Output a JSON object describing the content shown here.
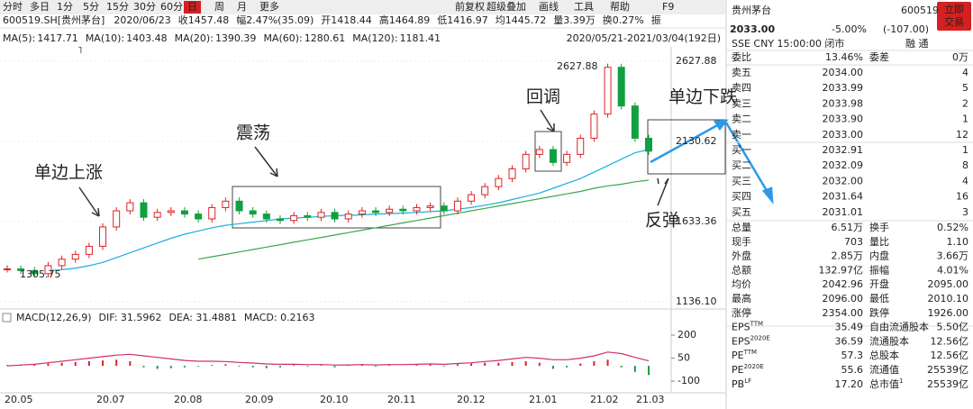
{
  "toolbar": {
    "tabs": [
      "分时",
      "多日",
      "1分",
      "5分",
      "15分",
      "30分",
      "60分",
      "日",
      "周",
      "月",
      "更多"
    ],
    "active_tab_index": 7,
    "tools": [
      "前复权",
      "超级叠加",
      "画线",
      "工具",
      "帮助",
      "F9"
    ]
  },
  "info_row": {
    "symbol": "600519.SH[贵州茅台]",
    "date": "2020/06/23",
    "items": [
      {
        "label": "收",
        "value": "1457.48",
        "color": "#d01010"
      },
      {
        "label": "幅",
        "value": "2.47%(35.09)",
        "color": "#d01010"
      },
      {
        "label": "开",
        "value": "1418.44",
        "color": "#d01010"
      },
      {
        "label": "高",
        "value": "1464.89",
        "color": "#d01010"
      },
      {
        "label": "低",
        "value": "1416.97",
        "color": "#d01010"
      },
      {
        "label": "均",
        "value": "1445.72",
        "color": "#d01010"
      },
      {
        "label": "量",
        "value": "3.39万",
        "color": "#222"
      },
      {
        "label": "换",
        "value": "0.27%",
        "color": "#222"
      },
      {
        "label": "振"
      }
    ]
  },
  "ma_legend": [
    {
      "label": "MA(5):",
      "value": "1417.71",
      "color": "#e0307a"
    },
    {
      "label": "MA(10):",
      "value": "1403.48",
      "color": "#2a62d0"
    },
    {
      "label": "MA(20):",
      "value": "1390.39",
      "color": "#1a2f80"
    },
    {
      "label": "MA(60):",
      "value": "1280.61",
      "color": "#18b0dc"
    },
    {
      "label": "MA(120):",
      "value": "1181.41",
      "color": "#3aa84a"
    }
  ],
  "range_text": "2020/05/21-2021/03/04(192日)",
  "price_chart": {
    "ylim": [
      1108,
      2700
    ],
    "yticks": [
      2627.88,
      2130.62,
      1633.36,
      {
        "value": 1136.1,
        "label": "1136.10"
      }
    ],
    "up_color": "#e02020",
    "down_color": "#10a040",
    "close": [
      1340,
      1330,
      1310,
      1360,
      1400,
      1430,
      1480,
      1600,
      1700,
      1750,
      1660,
      1690,
      1700,
      1680,
      1650,
      1720,
      1760,
      1700,
      1680,
      1650,
      1640,
      1670,
      1660,
      1690,
      1650,
      1680,
      1700,
      1690,
      1710,
      1700,
      1720,
      1730,
      1700,
      1760,
      1800,
      1850,
      1900,
      1960,
      2050,
      2080,
      2000,
      2050,
      2150,
      2300,
      2590,
      2350,
      2150,
      2070
    ],
    "ma_series": [
      {
        "legend": 3,
        "values": [
          null,
          null,
          null,
          1330,
          1335,
          1345,
          1360,
          1380,
          1410,
          1440,
          1470,
          1500,
          1530,
          1555,
          1575,
          1595,
          1610,
          1620,
          1630,
          1640,
          1650,
          1655,
          1660,
          1665,
          1670,
          1672,
          1675,
          1680,
          1683,
          1686,
          1690,
          1695,
          1700,
          1710,
          1720,
          1735,
          1750,
          1770,
          1790,
          1810,
          1840,
          1870,
          1900,
          1940,
          1980,
          2020,
          2060,
          2080
        ]
      },
      {
        "legend": 4,
        "values": [
          null,
          null,
          null,
          null,
          null,
          null,
          null,
          null,
          null,
          null,
          null,
          null,
          null,
          null,
          1400,
          1415,
          1430,
          1445,
          1460,
          1475,
          1490,
          1505,
          1520,
          1535,
          1550,
          1565,
          1580,
          1595,
          1610,
          1625,
          1640,
          1655,
          1670,
          1685,
          1700,
          1715,
          1730,
          1745,
          1760,
          1775,
          1790,
          1805,
          1820,
          1840,
          1855,
          1865,
          1880,
          1890
        ]
      }
    ],
    "extremes": [
      "2627.88",
      "1305.75"
    ],
    "annotations": [
      "单边上涨",
      "震荡",
      "回调",
      "单边下跌",
      "反弹"
    ]
  },
  "macd": {
    "label": "MACD(12,26,9)",
    "items": [
      {
        "text": "DIF: 31.5962",
        "color": "#d0306a"
      },
      {
        "text": "DEA: 31.4881",
        "color": "#2a62d0"
      },
      {
        "text": "MACD: 0.2163",
        "color": "#20a040"
      }
    ],
    "ylim": [
      -170,
      259
    ],
    "yticks": [
      200,
      50,
      -100
    ],
    "hist": [
      5,
      8,
      10,
      15,
      20,
      25,
      30,
      35,
      40,
      30,
      -10,
      -20,
      -15,
      -10,
      -5,
      5,
      10,
      -5,
      -10,
      -15,
      -10,
      5,
      -5,
      5,
      -10,
      5,
      8,
      -5,
      5,
      0,
      5,
      8,
      -5,
      10,
      15,
      20,
      20,
      25,
      30,
      20,
      -20,
      -10,
      15,
      30,
      40,
      -10,
      -40,
      -60
    ],
    "dif": [
      0,
      5,
      10,
      20,
      30,
      40,
      50,
      60,
      70,
      75,
      65,
      55,
      45,
      35,
      30,
      30,
      28,
      22,
      18,
      12,
      10,
      10,
      8,
      8,
      5,
      6,
      8,
      6,
      8,
      8,
      10,
      12,
      10,
      15,
      20,
      28,
      35,
      45,
      55,
      50,
      40,
      40,
      50,
      65,
      90,
      80,
      55,
      32
    ],
    "dif_color": "#d0306a"
  },
  "x_labels": [
    "20.05",
    "20.07",
    "20.08",
    "20.09",
    "20.10",
    "20.11",
    "20.12",
    "21.01",
    "21.02",
    "21.03"
  ],
  "quote": {
    "name": "贵州茅台",
    "code": "600519",
    "button": [
      "立即",
      "交易"
    ],
    "price": "2033.00",
    "change_pct": "-5.00%",
    "change": "(-107.00)",
    "status": "SSE  CNY  15:00:00  闭市",
    "flags": "融  通",
    "ratio_row": {
      "label": "委比",
      "value": "13.46%",
      "label2": "委差",
      "value2": "0万"
    },
    "book": [
      [
        "卖五",
        "2034.00",
        "4"
      ],
      [
        "卖四",
        "2033.99",
        "5"
      ],
      [
        "卖三",
        "2033.98",
        "2"
      ],
      [
        "卖二",
        "2033.90",
        "1"
      ],
      [
        "卖一",
        "2033.00",
        "12"
      ],
      [
        "买一",
        "2032.91",
        "1"
      ],
      [
        "买二",
        "2032.09",
        "8"
      ],
      [
        "买三",
        "2032.00",
        "4"
      ],
      [
        "买四",
        "2031.64",
        "16"
      ],
      [
        "买五",
        "2031.01",
        "3"
      ]
    ],
    "stats": [
      [
        {
          "t": "总量"
        },
        {
          "t": "6.51万",
          "c": "#222"
        },
        {
          "t": "换手"
        },
        {
          "t": "0.52%",
          "c": "#222"
        }
      ],
      [
        {
          "t": "现手"
        },
        {
          "t": "703",
          "c": "#222"
        },
        {
          "t": "量比"
        },
        {
          "t": "1.10",
          "c": "#222"
        }
      ],
      [
        {
          "t": "外盘"
        },
        {
          "t": "2.85万",
          "c": "#d01010"
        },
        {
          "t": "内盘"
        },
        {
          "t": "3.66万",
          "c": "#109030"
        }
      ],
      [
        {
          "t": "总额"
        },
        {
          "t": "132.97亿",
          "c": "#222"
        },
        {
          "t": "振幅"
        },
        {
          "t": "4.01%",
          "c": "#222"
        }
      ],
      [
        {
          "t": "均价"
        },
        {
          "t": "2042.96",
          "c": "#109030"
        },
        {
          "t": "开盘"
        },
        {
          "t": "2095.00",
          "c": "#109030"
        }
      ],
      [
        {
          "t": "最高"
        },
        {
          "t": "2096.00",
          "c": "#109030"
        },
        {
          "t": "最低"
        },
        {
          "t": "2010.10",
          "c": "#109030"
        }
      ],
      [
        {
          "t": "涨停"
        },
        {
          "t": "2354.00",
          "c": "#d01010"
        },
        {
          "t": "跌停"
        },
        {
          "t": "1926.00",
          "c": "#109030"
        }
      ],
      [
        {
          "t": "EPS",
          "sup": "TTM"
        },
        {
          "t": "35.49",
          "c": "#222"
        },
        {
          "t": "自由流通股本"
        },
        {
          "t": "5.50亿",
          "c": "#222"
        }
      ],
      [
        {
          "t": "EPS",
          "sup": "2020E"
        },
        {
          "t": "36.59",
          "c": "#222"
        },
        {
          "t": "流通股本"
        },
        {
          "t": "12.56亿",
          "c": "#222"
        }
      ],
      [
        {
          "t": "PE",
          "sup": "TTM"
        },
        {
          "t": "57.3",
          "c": "#222"
        },
        {
          "t": "总股本"
        },
        {
          "t": "12.56亿",
          "c": "#222"
        }
      ],
      [
        {
          "t": "PE",
          "sup": "2020E"
        },
        {
          "t": "55.6",
          "c": "#222"
        },
        {
          "t": "流通值"
        },
        {
          "t": "25539亿",
          "c": "#222"
        }
      ],
      [
        {
          "t": "PB",
          "sup": "LF"
        },
        {
          "t": "17.20",
          "c": "#222"
        },
        {
          "t": "总市值",
          "sup": "1"
        },
        {
          "t": "25539亿",
          "c": "#222"
        }
      ]
    ]
  }
}
